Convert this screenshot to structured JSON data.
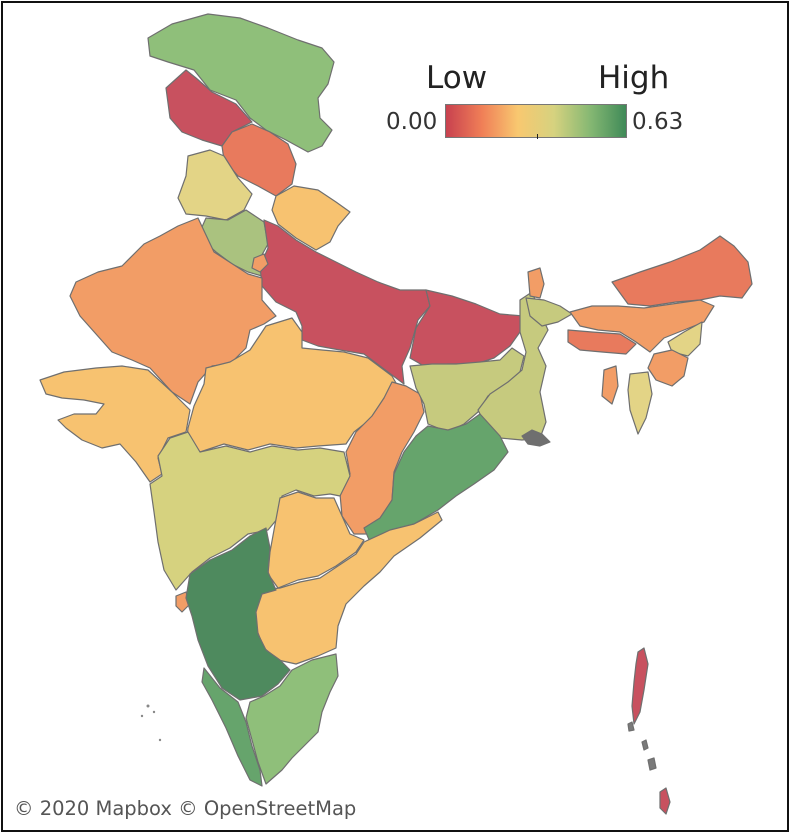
{
  "legend": {
    "low_label": "Low",
    "high_label": "High",
    "min_value": "0.00",
    "max_value": "0.63",
    "gradient": [
      "#c8414f",
      "#f07f57",
      "#f8c870",
      "#d6d27f",
      "#86b873",
      "#3f8a58"
    ]
  },
  "credit": "© 2020 Mapbox © OpenStreetMap",
  "colors": {
    "red": "#c8515f",
    "red_orange": "#e87a5d",
    "orange": "#f29d66",
    "light_orange": "#f7c270",
    "pale_yellow": "#e3d486",
    "yellow_green": "#c6ca7e",
    "light_green": "#8fbf7a",
    "green": "#66a46c",
    "dark_green": "#4e8a5e",
    "border": "#6f6f6f"
  }
}
